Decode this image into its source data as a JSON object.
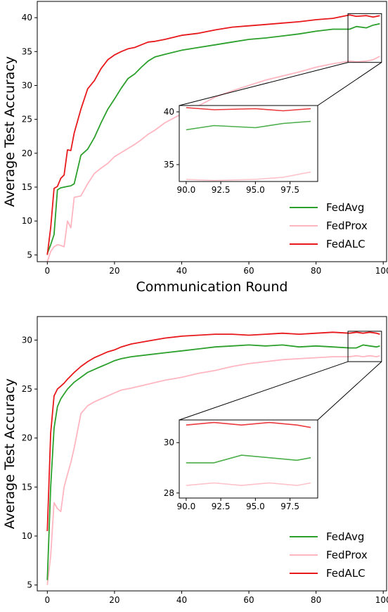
{
  "colors": {
    "FedAvg": "#2ca02c",
    "FedProx": "#ffb6c1",
    "FedALC": "#e8191c"
  },
  "chart_data": [
    {
      "type": "line",
      "xlabel": "Communication Round",
      "ylabel": "Average Test Accuracy",
      "xlim": [
        -3,
        101
      ],
      "ylim": [
        4,
        42.4
      ],
      "xticks": [
        "0",
        "20",
        "40",
        "60",
        "80",
        "100"
      ],
      "yticks": [
        "5",
        "10",
        "15",
        "20",
        "25",
        "30",
        "35",
        "40"
      ],
      "legend": "lower-right",
      "grid": false,
      "series": [
        {
          "name": "FedAvg",
          "x": [
            0,
            1,
            2,
            3,
            4,
            5,
            6,
            7,
            8,
            10,
            12,
            14,
            16,
            18,
            20,
            22,
            24,
            26,
            28,
            30,
            32,
            35,
            40,
            45,
            50,
            55,
            60,
            65,
            70,
            75,
            80,
            85,
            90,
            92,
            95,
            97,
            99
          ],
          "y": [
            5.2,
            6.5,
            8,
            14.6,
            14.9,
            15,
            15.1,
            15.2,
            15.5,
            19.7,
            20.6,
            22.3,
            24.5,
            26.5,
            28,
            29.6,
            31,
            31.7,
            32.7,
            33.6,
            34.2,
            34.6,
            35.2,
            35.6,
            36,
            36.4,
            36.8,
            37,
            37.3,
            37.6,
            38,
            38.3,
            38.3,
            38.7,
            38.5,
            38.9,
            39.1
          ]
        },
        {
          "name": "FedProx",
          "x": [
            0,
            1,
            2,
            3,
            4,
            5,
            6,
            7,
            8,
            10,
            12,
            14,
            16,
            18,
            20,
            22,
            24,
            26,
            28,
            30,
            32,
            35,
            40,
            45,
            50,
            55,
            60,
            65,
            70,
            75,
            80,
            85,
            90,
            92,
            95,
            97,
            99
          ],
          "y": [
            4,
            5.5,
            6.2,
            6.5,
            6.4,
            6.2,
            10,
            9,
            13.5,
            13.7,
            15.5,
            17,
            17.8,
            18.5,
            19.5,
            20.1,
            20.7,
            21.3,
            22,
            22.8,
            23.4,
            24.5,
            25.8,
            27,
            28.3,
            29.2,
            30,
            30.8,
            31.4,
            32,
            32.7,
            33.2,
            33.6,
            33.5,
            33.6,
            33.8,
            34.3
          ]
        },
        {
          "name": "FedALC",
          "x": [
            0,
            1,
            2,
            3,
            4,
            5,
            6,
            7,
            8,
            10,
            12,
            14,
            16,
            18,
            20,
            22,
            24,
            26,
            28,
            30,
            32,
            35,
            40,
            45,
            50,
            55,
            60,
            65,
            70,
            75,
            80,
            85,
            90,
            92,
            95,
            97,
            99
          ],
          "y": [
            5,
            9,
            14.8,
            15.1,
            16.3,
            16.8,
            20.5,
            20.4,
            23,
            26.5,
            29.5,
            30.7,
            32.5,
            33.8,
            34.5,
            35,
            35.4,
            35.6,
            36,
            36.4,
            36.5,
            36.8,
            37.4,
            37.7,
            38.2,
            38.6,
            38.8,
            39,
            39.2,
            39.4,
            39.7,
            39.9,
            40.4,
            40.2,
            40.3,
            40.1,
            40.3
          ]
        }
      ],
      "inset": {
        "xlim": [
          89.5,
          99.5
        ],
        "ylim": [
          33.4,
          40.6
        ],
        "xticks": [
          "90.0",
          "92.5",
          "95.0",
          "97.5"
        ],
        "yticks": [
          "35",
          "40"
        ]
      }
    },
    {
      "type": "line",
      "xlabel": "Communication Round",
      "ylabel": "Average Test Accuracy",
      "xlim": [
        -3,
        101
      ],
      "ylim": [
        4.4,
        32.4
      ],
      "xticks": [
        "0",
        "20",
        "40",
        "60",
        "80",
        "100"
      ],
      "yticks": [
        "5",
        "10",
        "15",
        "20",
        "25",
        "30"
      ],
      "legend": "lower-right",
      "grid": false,
      "series": [
        {
          "name": "FedAvg",
          "x": [
            0,
            1,
            2,
            3,
            4,
            5,
            6,
            8,
            10,
            12,
            14,
            16,
            18,
            20,
            22,
            25,
            30,
            35,
            40,
            45,
            50,
            55,
            60,
            65,
            70,
            75,
            80,
            85,
            90,
            92,
            94,
            96,
            98,
            99
          ],
          "y": [
            5.5,
            15,
            21,
            23.2,
            24,
            24.5,
            25,
            25.7,
            26.2,
            26.7,
            27,
            27.3,
            27.6,
            27.9,
            28.1,
            28.3,
            28.5,
            28.7,
            28.9,
            29.1,
            29.3,
            29.4,
            29.5,
            29.4,
            29.5,
            29.3,
            29.4,
            29.3,
            29.2,
            29.2,
            29.5,
            29.4,
            29.3,
            29.4
          ]
        },
        {
          "name": "FedProx",
          "x": [
            0,
            1,
            2,
            3,
            4,
            5,
            6,
            7,
            8,
            10,
            12,
            14,
            16,
            18,
            20,
            22,
            25,
            30,
            35,
            40,
            45,
            50,
            55,
            60,
            65,
            70,
            75,
            80,
            85,
            90,
            92,
            94,
            96,
            98,
            99
          ],
          "y": [
            5,
            8,
            13.4,
            12.8,
            12.5,
            15,
            16.3,
            17.5,
            19,
            22.5,
            23.3,
            23.7,
            24,
            24.3,
            24.6,
            24.9,
            25.1,
            25.5,
            25.9,
            26.2,
            26.6,
            26.9,
            27.3,
            27.6,
            27.8,
            28,
            28.1,
            28.2,
            28.3,
            28.3,
            28.4,
            28.3,
            28.4,
            28.3,
            28.4
          ]
        },
        {
          "name": "FedALC",
          "x": [
            0,
            1,
            2,
            3,
            4,
            5,
            6,
            8,
            10,
            12,
            14,
            16,
            18,
            20,
            22,
            25,
            30,
            35,
            40,
            45,
            50,
            55,
            60,
            65,
            70,
            75,
            80,
            85,
            90,
            92,
            94,
            96,
            98,
            99
          ],
          "y": [
            10.5,
            20.5,
            24.3,
            25,
            25.3,
            25.6,
            26,
            26.7,
            27.3,
            27.8,
            28.2,
            28.5,
            28.8,
            29,
            29.3,
            29.6,
            29.9,
            30.2,
            30.4,
            30.5,
            30.6,
            30.6,
            30.5,
            30.6,
            30.7,
            30.6,
            30.7,
            30.8,
            30.7,
            30.8,
            30.7,
            30.8,
            30.7,
            30.6
          ]
        }
      ],
      "inset": {
        "xlim": [
          89.5,
          99.5
        ],
        "ylim": [
          27.8,
          30.9
        ],
        "xticks": [
          "90.0",
          "92.5",
          "95.0",
          "97.5"
        ],
        "yticks": [
          "28",
          "30"
        ]
      }
    }
  ]
}
